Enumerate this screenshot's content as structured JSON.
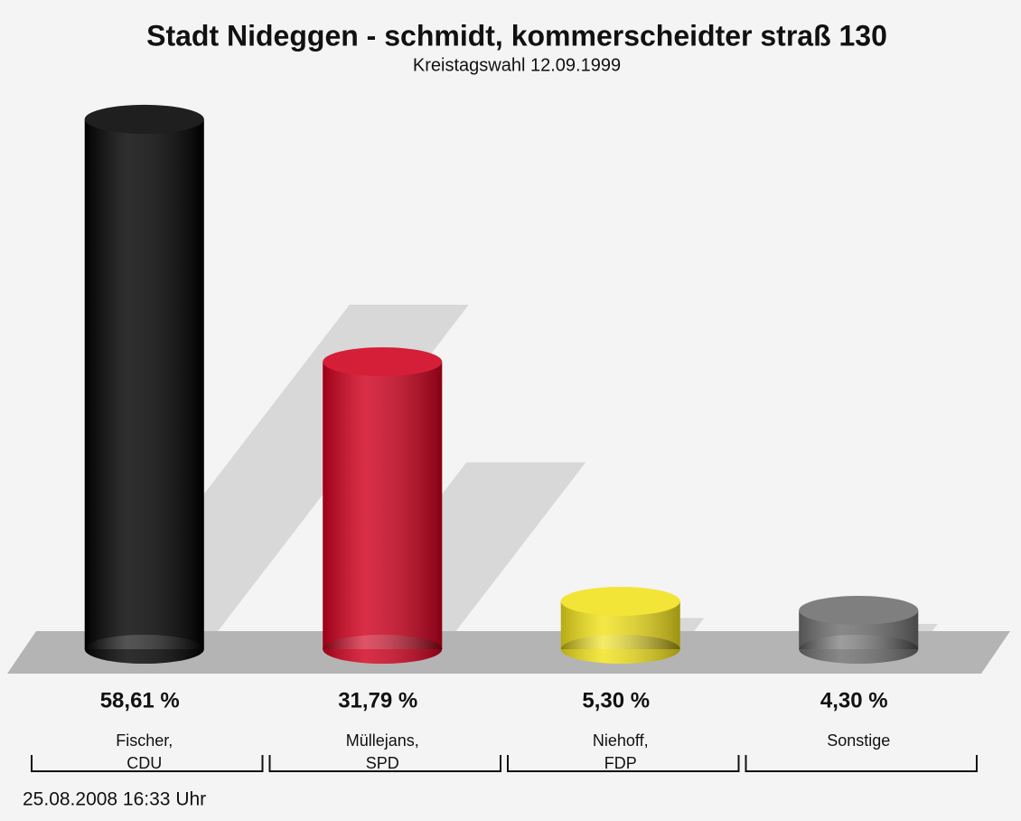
{
  "chart_data": {
    "type": "bar",
    "title": "Stadt Nideggen - schmidt, kommerscheidter straß 130",
    "subtitle": "Kreistagswahl 12.09.1999",
    "categories": [
      "Fischer,\nCDU",
      "Müllejans,\nSPD",
      "Niehoff,\nFDP",
      "Sonstige"
    ],
    "values": [
      58.61,
      31.79,
      5.3,
      4.3
    ],
    "value_labels": [
      "58,61 %",
      "31,79 %",
      "5,30 %",
      "4,30 %"
    ],
    "colors": [
      "#000000",
      "#d0001e",
      "#f2e21c",
      "#6e6e6e"
    ],
    "footer": "25.08.2008 16:33 Uhr"
  }
}
